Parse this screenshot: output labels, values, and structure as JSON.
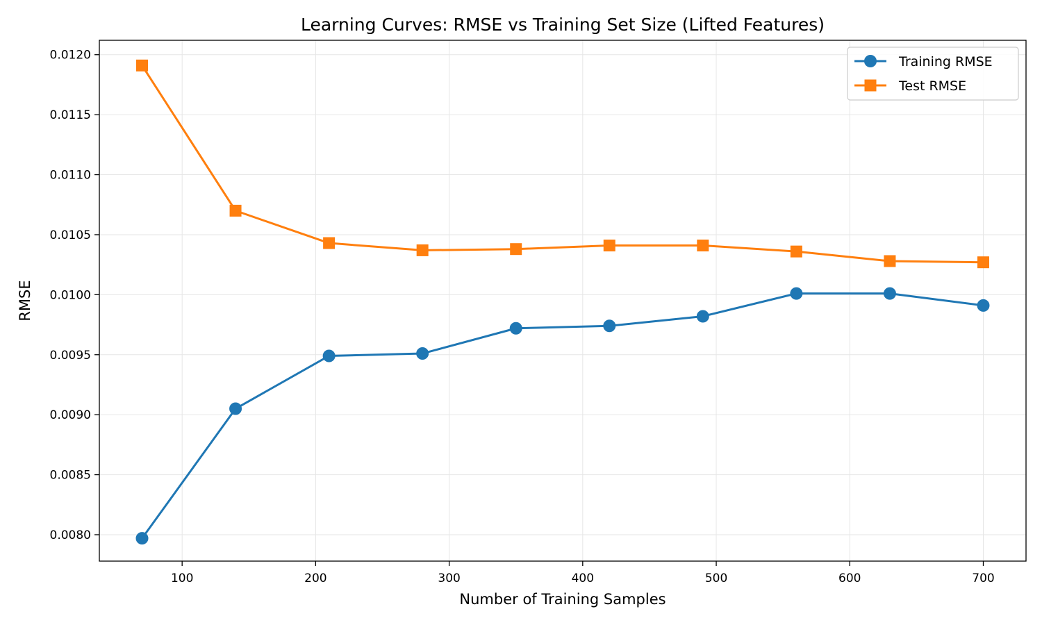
{
  "chart_data": {
    "type": "line",
    "title": "Learning Curves: RMSE vs Training Set Size (Lifted Features)",
    "xlabel": "Number of Training Samples",
    "ylabel": "RMSE",
    "xlim": [
      38,
      732
    ],
    "ylim": [
      0.00778,
      0.01212
    ],
    "x_ticks": [
      100,
      200,
      300,
      400,
      500,
      600,
      700
    ],
    "x_tick_labels": [
      "100",
      "200",
      "300",
      "400",
      "500",
      "600",
      "700"
    ],
    "y_ticks": [
      0.008,
      0.0085,
      0.009,
      0.0095,
      0.01,
      0.0105,
      0.011,
      0.0115,
      0.012
    ],
    "y_tick_labels": [
      "0.0080",
      "0.0085",
      "0.0090",
      "0.0095",
      "0.0100",
      "0.0105",
      "0.0110",
      "0.0115",
      "0.0120"
    ],
    "grid": true,
    "legend_position": "top-right",
    "x": [
      70,
      140,
      210,
      280,
      350,
      420,
      490,
      560,
      630,
      700
    ],
    "series": [
      {
        "name": "Training RMSE",
        "color": "#1f77b4",
        "marker": "circle",
        "values": [
          0.00797,
          0.00905,
          0.00949,
          0.00951,
          0.00972,
          0.00974,
          0.00982,
          0.01001,
          0.01001,
          0.00991
        ]
      },
      {
        "name": "Test RMSE",
        "color": "#ff7f0e",
        "marker": "square",
        "values": [
          0.01191,
          0.0107,
          0.01043,
          0.01037,
          0.01038,
          0.01041,
          0.01041,
          0.01036,
          0.01028,
          0.01027
        ]
      }
    ]
  }
}
